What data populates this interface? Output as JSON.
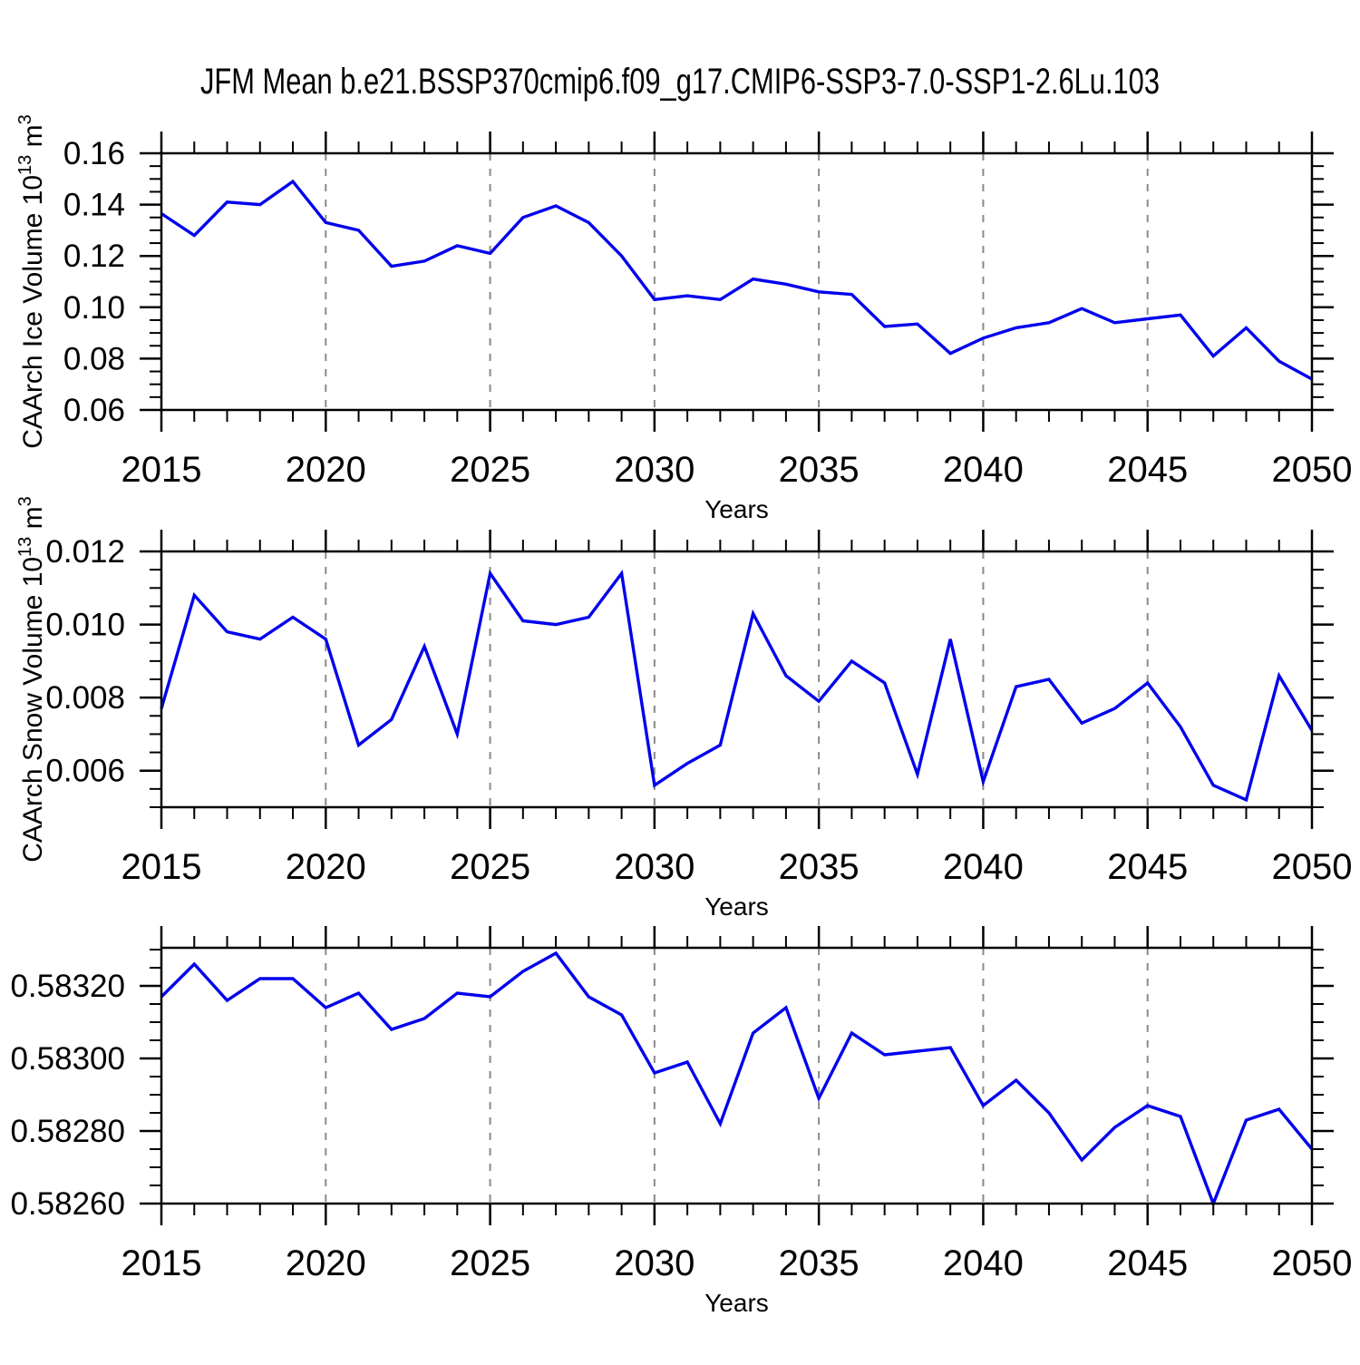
{
  "figure": {
    "title": "JFM Mean b.e21.BSSP370cmip6.f09_g17.CMIP6-SSP3-7.0-SSP1-2.6Lu.103",
    "line_color": "#0000ee",
    "grid_color": "#8a8a8a",
    "axis_color": "#000000",
    "background": "#ffffff"
  },
  "chart_data": [
    {
      "type": "line",
      "name": "ice-volume",
      "ylabel": "CAArch Ice Volume 10¹³ m³",
      "ylabel_parts": [
        {
          "text": "CAArch Ice Volume 10",
          "super": false
        },
        {
          "text": "13",
          "super": true
        },
        {
          "text": " m",
          "super": false
        },
        {
          "text": "3",
          "super": true
        }
      ],
      "xlabel": "Years",
      "ylim": [
        0.06,
        0.16
      ],
      "yticks": [
        0.06,
        0.08,
        0.1,
        0.12,
        0.14,
        0.16
      ],
      "ytick_labels": [
        "0.06",
        "0.08",
        "0.10",
        "0.12",
        "0.14",
        "0.16"
      ],
      "y_minor_step": 0.005,
      "xticks": [
        2015,
        2020,
        2025,
        2030,
        2035,
        2040,
        2045,
        2050
      ],
      "grid_x": [
        2020,
        2025,
        2030,
        2035,
        2040,
        2045
      ],
      "grid": "vertical-dashed",
      "legend_position": "none",
      "x": [
        2015,
        2016,
        2017,
        2018,
        2019,
        2020,
        2021,
        2022,
        2023,
        2024,
        2025,
        2026,
        2027,
        2028,
        2029,
        2030,
        2031,
        2032,
        2033,
        2034,
        2035,
        2036,
        2037,
        2038,
        2039,
        2040,
        2041,
        2042,
        2043,
        2044,
        2045,
        2046,
        2047,
        2048,
        2049,
        2050
      ],
      "values": [
        0.1365,
        0.128,
        0.141,
        0.14,
        0.149,
        0.133,
        0.13,
        0.116,
        0.118,
        0.124,
        0.121,
        0.135,
        0.1395,
        0.133,
        0.12,
        0.103,
        0.1045,
        0.103,
        0.111,
        0.109,
        0.106,
        0.105,
        0.0925,
        0.0935,
        0.082,
        0.088,
        0.092,
        0.094,
        0.0995,
        0.094,
        0.0955,
        0.097,
        0.081,
        0.092,
        0.079,
        0.072
      ]
    },
    {
      "type": "line",
      "name": "snow-volume",
      "ylabel": "CAArch Snow Volume 10¹³ m³",
      "ylabel_parts": [
        {
          "text": "CAArch Snow Volume 10",
          "super": false
        },
        {
          "text": "13",
          "super": true
        },
        {
          "text": " m",
          "super": false
        },
        {
          "text": "3",
          "super": true
        }
      ],
      "xlabel": "Years",
      "ylim": [
        0.005,
        0.012
      ],
      "yticks": [
        0.006,
        0.008,
        0.01,
        0.012
      ],
      "ytick_labels": [
        "0.006",
        "0.008",
        "0.010",
        "0.012"
      ],
      "y_minor_step": 0.0005,
      "xticks": [
        2015,
        2020,
        2025,
        2030,
        2035,
        2040,
        2045,
        2050
      ],
      "grid_x": [
        2020,
        2025,
        2030,
        2035,
        2040,
        2045
      ],
      "grid": "vertical-dashed",
      "legend_position": "none",
      "x": [
        2015,
        2016,
        2017,
        2018,
        2019,
        2020,
        2021,
        2022,
        2023,
        2024,
        2025,
        2026,
        2027,
        2028,
        2029,
        2030,
        2031,
        2032,
        2033,
        2034,
        2035,
        2036,
        2037,
        2038,
        2039,
        2040,
        2041,
        2042,
        2043,
        2044,
        2045,
        2046,
        2047,
        2048,
        2049,
        2050
      ],
      "values": [
        0.0077,
        0.0108,
        0.0098,
        0.0096,
        0.0102,
        0.0096,
        0.0067,
        0.0074,
        0.0094,
        0.007,
        0.0114,
        0.0101,
        0.01,
        0.0102,
        0.0114,
        0.0056,
        0.0062,
        0.0067,
        0.0103,
        0.0086,
        0.0079,
        0.009,
        0.0084,
        0.0059,
        0.0096,
        0.0057,
        0.0083,
        0.0085,
        0.0073,
        0.0077,
        0.0084,
        0.0072,
        0.0056,
        0.0052,
        0.0086,
        0.0071
      ]
    },
    {
      "type": "line",
      "name": "series-3",
      "ylabel": "",
      "ylabel_parts": [],
      "xlabel": "Years",
      "ylim": [
        0.5826,
        0.583305
      ],
      "yticks": [
        0.5826,
        0.5828,
        0.583,
        0.5832
      ],
      "ytick_labels": [
        "0.58260",
        "0.58280",
        "0.58300",
        "0.58320"
      ],
      "y_minor_step": 5e-05,
      "xticks": [
        2015,
        2020,
        2025,
        2030,
        2035,
        2040,
        2045,
        2050
      ],
      "grid_x": [
        2020,
        2025,
        2030,
        2035,
        2040,
        2045
      ],
      "grid": "vertical-dashed",
      "legend_position": "none",
      "x": [
        2015,
        2016,
        2017,
        2018,
        2019,
        2020,
        2021,
        2022,
        2023,
        2024,
        2025,
        2026,
        2027,
        2028,
        2029,
        2030,
        2031,
        2032,
        2033,
        2034,
        2035,
        2036,
        2037,
        2038,
        2039,
        2040,
        2041,
        2042,
        2043,
        2044,
        2045,
        2046,
        2047,
        2048,
        2049,
        2050
      ],
      "values": [
        0.58317,
        0.58326,
        0.58316,
        0.58322,
        0.58322,
        0.58314,
        0.58318,
        0.58308,
        0.58311,
        0.58318,
        0.58317,
        0.58324,
        0.58329,
        0.58317,
        0.58312,
        0.58296,
        0.58299,
        0.58282,
        0.58307,
        0.58314,
        0.58289,
        0.58307,
        0.58301,
        0.58302,
        0.58303,
        0.58287,
        0.58294,
        0.58285,
        0.58272,
        0.58281,
        0.58287,
        0.58284,
        0.5826,
        0.58283,
        0.58286,
        0.58275
      ]
    }
  ]
}
